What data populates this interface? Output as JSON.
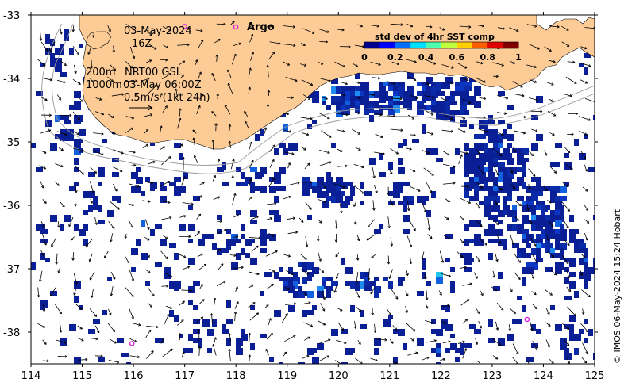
{
  "map": {
    "date_label": "03-May-2024",
    "hour_label": "16Z",
    "contour_label_1": "200m",
    "contour_label_2": "1000m",
    "product_label": "NRT00 GSL",
    "time_label": "03-May 06:00Z",
    "scale_label": "0.5m/s (1kt 24h)",
    "argo_label": "Argo",
    "copyright": "© IMOS 06-May-2024 15:24 Hobart",
    "land_color": "#fccb96",
    "ocean_color": "#ffffff",
    "argo_color": "#e020e0",
    "data_color_low": "#0a1e96",
    "x_ticks": [
      "114",
      "115",
      "116",
      "117",
      "118",
      "119",
      "120",
      "121",
      "122",
      "123",
      "124",
      "125"
    ],
    "y_ticks": [
      "-33",
      "-34",
      "-35",
      "-36",
      "-37",
      "-38"
    ],
    "lon_range": [
      114,
      125
    ],
    "lat_range": [
      -38.5,
      -33
    ],
    "argo_floats": [
      {
        "lon": 117.0,
        "lat": -33.18
      },
      {
        "lon": 115.97,
        "lat": -38.18
      },
      {
        "lon": 123.68,
        "lat": -37.8
      }
    ]
  },
  "colorbar": {
    "title": "std dev of 4hr SST comp",
    "ticks": [
      "0",
      "0.2",
      "0.4",
      "0.6",
      "0.8",
      "1"
    ],
    "colors": [
      "#00008f",
      "#0000ff",
      "#006fff",
      "#00dfff",
      "#4fffaf",
      "#bfff3f",
      "#ffcf00",
      "#ff5f00",
      "#df0000",
      "#800000"
    ]
  }
}
